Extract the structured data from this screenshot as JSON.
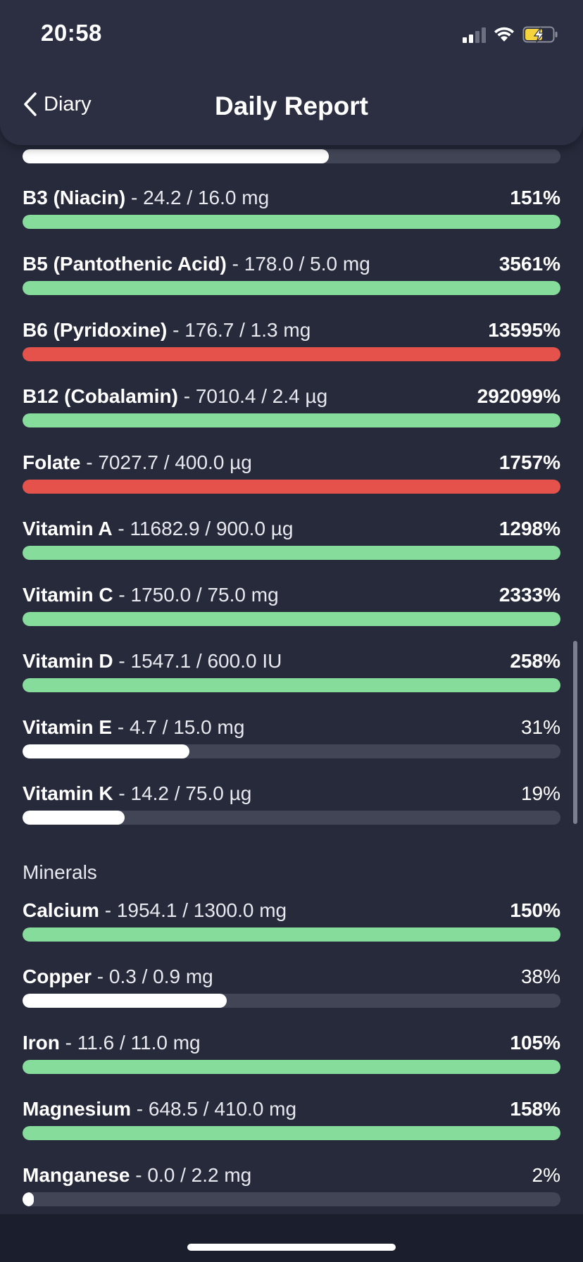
{
  "status_bar": {
    "time": "20:58"
  },
  "header": {
    "back_label": "Diary",
    "title": "Daily Report"
  },
  "colors": {
    "green": "#86dc9a",
    "red": "#e5524b",
    "white": "#ffffff",
    "track": "#414556",
    "background": "#262a3b"
  },
  "top_partial_bar": {
    "fill_fraction": 0.57,
    "color": "white"
  },
  "vitamins": [
    {
      "name": "B3 (Niacin)",
      "amount": " - 24.2 / 16.0 mg",
      "percent": "151%",
      "fill_fraction": 1.0,
      "color": "green",
      "bold_percent": true
    },
    {
      "name": "B5 (Pantothenic Acid)",
      "amount": " - 178.0 / 5.0 mg",
      "percent": "3561%",
      "fill_fraction": 1.0,
      "color": "green",
      "bold_percent": true
    },
    {
      "name": "B6 (Pyridoxine)",
      "amount": " - 176.7 / 1.3 mg",
      "percent": "13595%",
      "fill_fraction": 1.0,
      "color": "red",
      "bold_percent": true
    },
    {
      "name": "B12 (Cobalamin)",
      "amount": " - 7010.4 / 2.4 µg",
      "percent": "292099%",
      "fill_fraction": 1.0,
      "color": "green",
      "bold_percent": true
    },
    {
      "name": "Folate",
      "amount": " - 7027.7 / 400.0 µg",
      "percent": "1757%",
      "fill_fraction": 1.0,
      "color": "red",
      "bold_percent": true
    },
    {
      "name": "Vitamin A",
      "amount": " - 11682.9 / 900.0 µg",
      "percent": "1298%",
      "fill_fraction": 1.0,
      "color": "green",
      "bold_percent": true
    },
    {
      "name": "Vitamin C",
      "amount": " - 1750.0 / 75.0 mg",
      "percent": "2333%",
      "fill_fraction": 1.0,
      "color": "green",
      "bold_percent": true
    },
    {
      "name": "Vitamin D",
      "amount": " - 1547.1 / 600.0 IU",
      "percent": "258%",
      "fill_fraction": 1.0,
      "color": "green",
      "bold_percent": true
    },
    {
      "name": "Vitamin E",
      "amount": " - 4.7 / 15.0 mg",
      "percent": "31%",
      "fill_fraction": 0.31,
      "color": "white",
      "bold_percent": false
    },
    {
      "name": "Vitamin K",
      "amount": " - 14.2 / 75.0 µg",
      "percent": "19%",
      "fill_fraction": 0.19,
      "color": "white",
      "bold_percent": false
    }
  ],
  "minerals_heading": "Minerals",
  "minerals": [
    {
      "name": "Calcium",
      "amount": " - 1954.1 / 1300.0 mg",
      "percent": "150%",
      "fill_fraction": 1.0,
      "color": "green",
      "bold_percent": true
    },
    {
      "name": "Copper",
      "amount": " - 0.3 / 0.9 mg",
      "percent": "38%",
      "fill_fraction": 0.38,
      "color": "white",
      "bold_percent": false
    },
    {
      "name": "Iron",
      "amount": " - 11.6 / 11.0 mg",
      "percent": "105%",
      "fill_fraction": 1.0,
      "color": "green",
      "bold_percent": true
    },
    {
      "name": "Magnesium",
      "amount": " - 648.5 / 410.0 mg",
      "percent": "158%",
      "fill_fraction": 1.0,
      "color": "green",
      "bold_percent": true
    },
    {
      "name": "Manganese",
      "amount": " - 0.0 / 2.2 mg",
      "percent": "2%",
      "fill_fraction": 0.02,
      "color": "white",
      "bold_percent": false
    }
  ]
}
